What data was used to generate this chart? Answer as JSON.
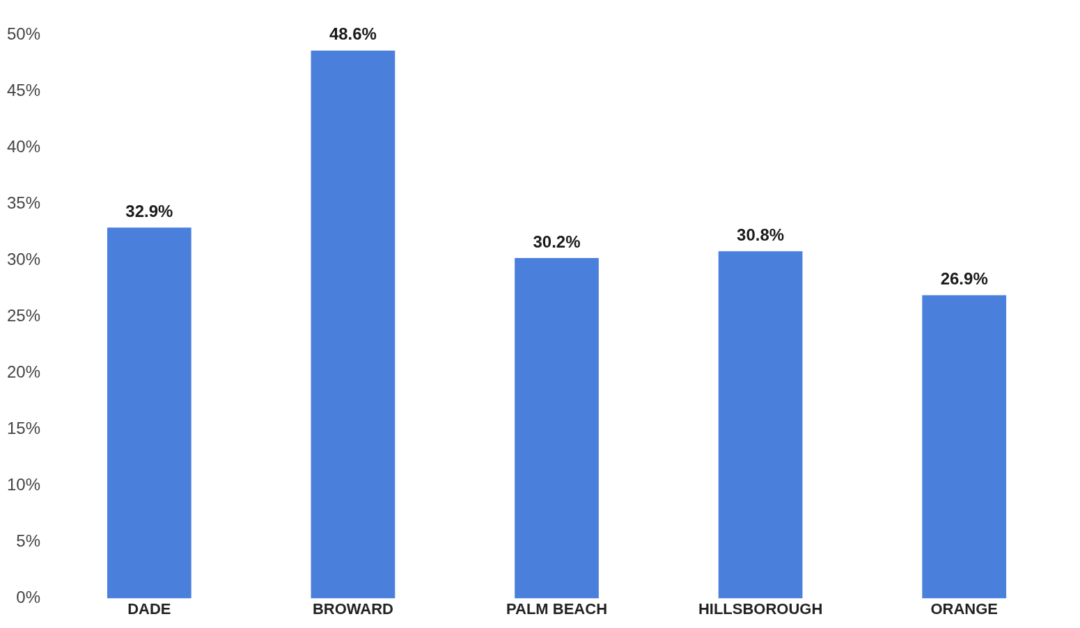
{
  "chart_data": {
    "type": "bar",
    "categories": [
      "DADE",
      "BROWARD",
      "PALM BEACH",
      "HILLSBOROUGH",
      "ORANGE"
    ],
    "values": [
      32.9,
      48.6,
      30.2,
      30.8,
      26.9
    ],
    "value_labels": [
      "32.9%",
      "48.6%",
      "30.2%",
      "30.8%",
      "26.9%"
    ],
    "color": "#4a7fdc",
    "ylim": [
      0,
      50
    ],
    "yticks": [
      {
        "value": 0,
        "label": "0%"
      },
      {
        "value": 5,
        "label": "5%"
      },
      {
        "value": 10,
        "label": "10%"
      },
      {
        "value": 15,
        "label": "15%"
      },
      {
        "value": 20,
        "label": "20%"
      },
      {
        "value": 25,
        "label": "25%"
      },
      {
        "value": 30,
        "label": "30%"
      },
      {
        "value": 35,
        "label": "35%"
      },
      {
        "value": 40,
        "label": "40%"
      },
      {
        "value": 45,
        "label": "45%"
      },
      {
        "value": 50,
        "label": "50%"
      }
    ],
    "grid": false,
    "legend": false
  }
}
